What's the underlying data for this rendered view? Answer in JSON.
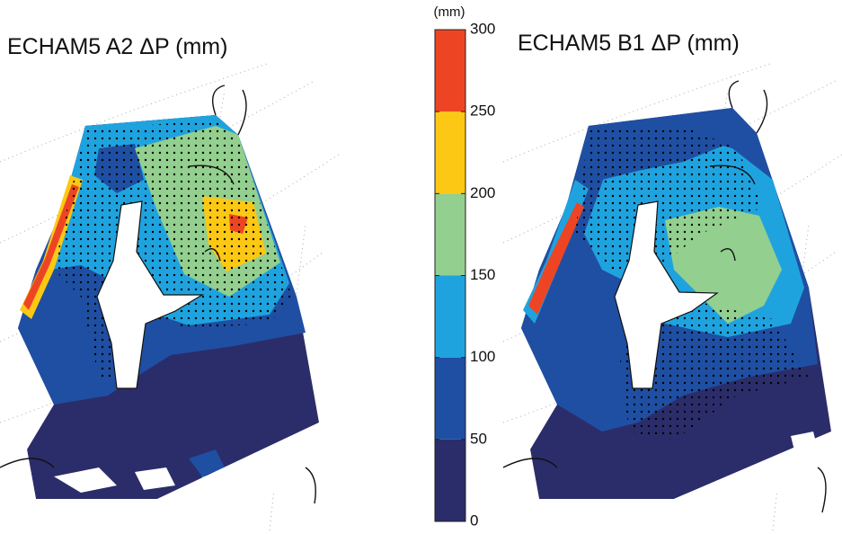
{
  "left_map": {
    "title": "ECHAM5 A2 ΔP (mm)"
  },
  "right_map": {
    "title": "ECHAM5 B1 ΔP (mm)"
  },
  "colorbar": {
    "unit": "(mm)",
    "lim": [
      0,
      300
    ],
    "ticks": [
      0,
      50,
      100,
      150,
      200,
      250,
      300
    ],
    "colors": [
      "#2b2d6a",
      "#1f4fa3",
      "#1fa3df",
      "#93cf8e",
      "#fcc814",
      "#ed4524"
    ]
  }
}
